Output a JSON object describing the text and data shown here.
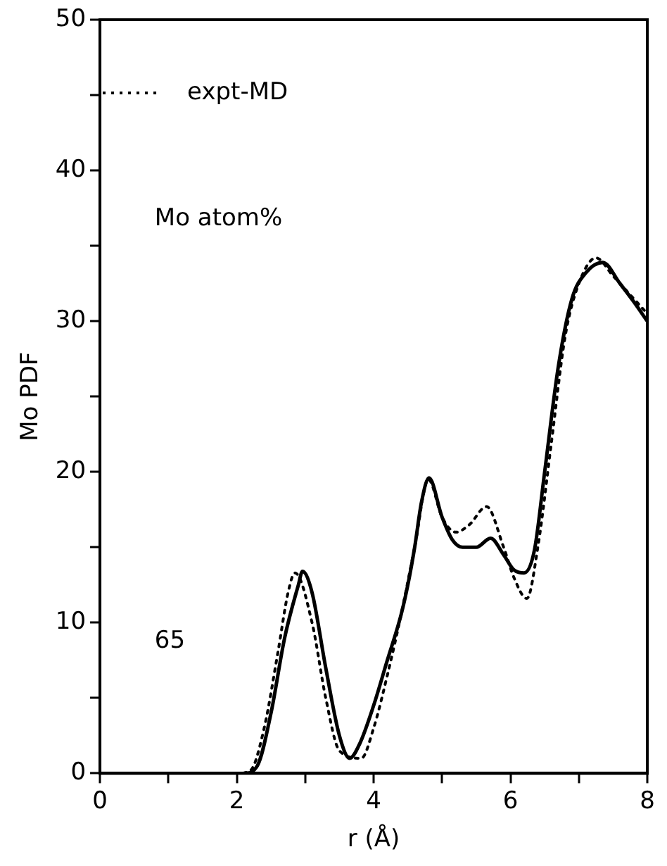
{
  "chart_data": {
    "type": "line",
    "xlabel": "r (Å)",
    "ylabel": "Mo PDF",
    "annotations": [
      "Mo atom%",
      "65"
    ],
    "legend": "top left",
    "grid": false,
    "marker": "none",
    "xlim": [
      0,
      8
    ],
    "xticks": [
      0,
      {
        "value": 1,
        "label": null
      },
      2,
      {
        "value": 3,
        "label": null
      },
      4,
      {
        "value": 5,
        "label": null
      },
      6,
      {
        "value": 7,
        "label": null
      },
      8
    ],
    "ylim": [
      0,
      50
    ],
    "yticks": [
      0,
      {
        "value": 5,
        "label": null
      },
      10,
      {
        "value": 15,
        "label": null
      },
      20,
      {
        "value": 25,
        "label": null
      },
      30,
      {
        "value": 35,
        "label": null
      },
      40,
      {
        "value": 45,
        "label": null
      },
      50
    ],
    "series": [
      {
        "color": "#000000",
        "line_style": "solid",
        "x": [
          0,
          1,
          2,
          2.1,
          2.3,
          2.5,
          2.7,
          2.9,
          2.96,
          3.1,
          3.3,
          3.5,
          3.65,
          3.8,
          4,
          4.2,
          4.4,
          4.5,
          4.6,
          4.7,
          4.81,
          5,
          5.15,
          5.3,
          5.5,
          5.71,
          5.9,
          6.05,
          6.2,
          6.35,
          6.5,
          6.7,
          6.9,
          7.1,
          7.35,
          7.6,
          7.8,
          8
        ],
        "values": [
          0,
          0,
          0,
          0,
          0.5,
          4,
          9,
          12.5,
          13.4,
          12,
          7,
          2.5,
          1,
          2,
          4.5,
          7.5,
          10.5,
          12.5,
          15,
          18,
          19.6,
          17,
          15.5,
          15,
          15,
          15.6,
          14.5,
          13.5,
          13.3,
          14.8,
          20,
          27,
          31.5,
          33.2,
          33.9,
          32.5,
          31.3,
          30
        ]
      },
      {
        "name": "expt-MD",
        "color": "#000000",
        "line_style": "dotted",
        "x": [
          0,
          1,
          2,
          2.2,
          2.4,
          2.6,
          2.75,
          2.85,
          3.1,
          3.3,
          3.5,
          3.82,
          4,
          4.2,
          4.4,
          4.6,
          4.8,
          5,
          5.2,
          5.4,
          5.65,
          5.9,
          6.05,
          6.24,
          6.4,
          6.6,
          6.8,
          7,
          7.25,
          7.5,
          7.8,
          8
        ],
        "values": [
          0,
          0,
          0,
          0.2,
          3,
          8,
          12,
          13.3,
          10,
          5,
          1.5,
          1,
          3,
          6.5,
          10.5,
          15,
          19.5,
          17,
          16,
          16.5,
          17.7,
          15,
          13,
          11.6,
          15,
          22,
          29,
          32.5,
          34.2,
          33,
          31.5,
          30.5
        ]
      }
    ]
  }
}
